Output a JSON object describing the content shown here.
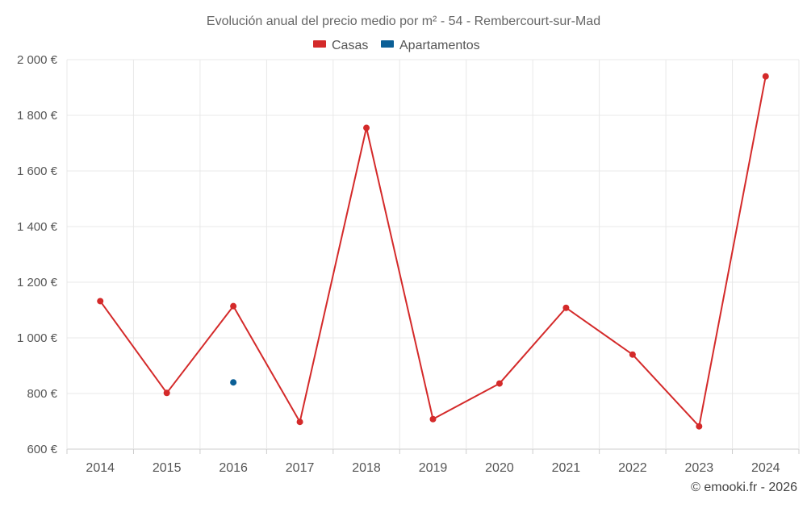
{
  "chart_data": {
    "type": "line",
    "title": "Evolución anual del precio medio por m² - 54 - Rembercourt-sur-Mad",
    "categories": [
      "2014",
      "2015",
      "2016",
      "2017",
      "2018",
      "2019",
      "2020",
      "2021",
      "2022",
      "2023",
      "2024"
    ],
    "series": [
      {
        "name": "Casas",
        "color": "#d42a2a",
        "values": [
          1132,
          802,
          1114,
          698,
          1755,
          708,
          836,
          1108,
          940,
          682,
          1940
        ]
      },
      {
        "name": "Apartamentos",
        "color": "#0b5f96",
        "values": [
          null,
          null,
          840,
          null,
          null,
          null,
          null,
          null,
          null,
          null,
          null
        ]
      }
    ],
    "ylim": [
      600,
      2000
    ],
    "yticks": [
      600,
      800,
      1000,
      1200,
      1400,
      1600,
      1800,
      2000
    ],
    "ytick_labels": [
      "600 €",
      "800 €",
      "1 000 €",
      "1 200 €",
      "1 400 €",
      "1 600 €",
      "1 800 €",
      "2 000 €"
    ],
    "xlabel": "",
    "ylabel": "",
    "grid": true,
    "legend_position": "top-center"
  },
  "credit": "© emooki.fr - 2026"
}
